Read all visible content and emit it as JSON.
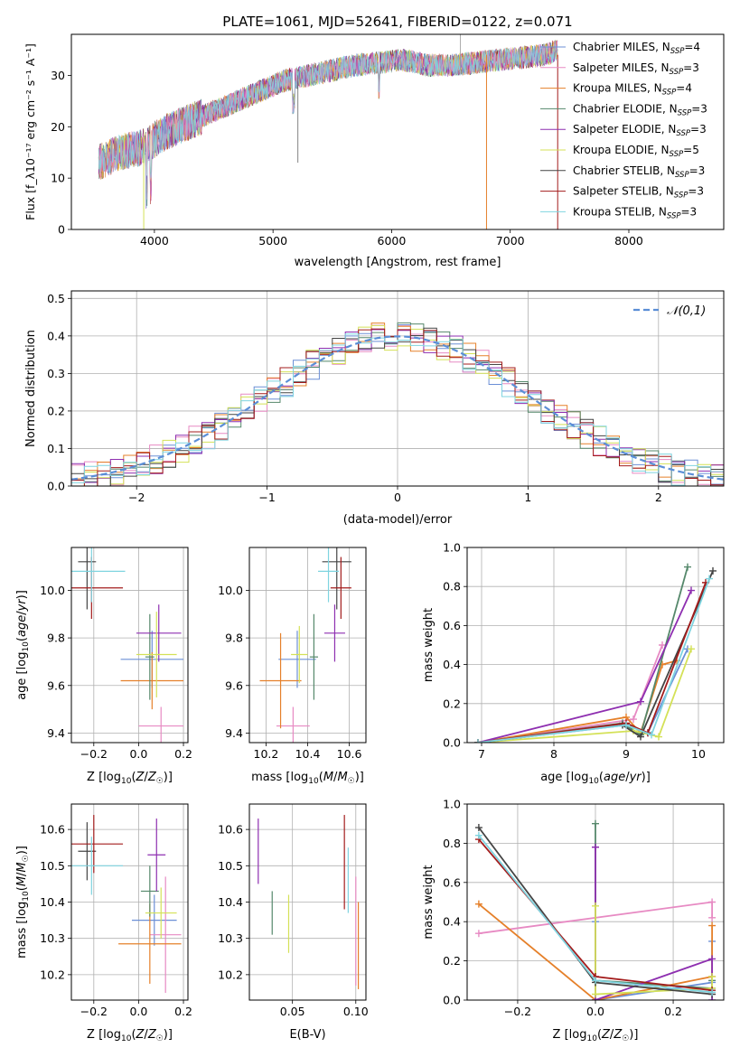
{
  "figure": {
    "title": "PLATE=1061, MJD=52641, FIBERID=0122, z=0.071"
  },
  "series_styles": [
    {
      "name": "Chabrier MILES",
      "nssp": "4",
      "color": "#6b8fd6"
    },
    {
      "name": "Salpeter MILES",
      "nssp": "3",
      "color": "#e78ac3"
    },
    {
      "name": "Kroupa MILES",
      "nssp": "4",
      "color": "#e5802a"
    },
    {
      "name": "Chabrier ELODIE",
      "nssp": "3",
      "color": "#55886b"
    },
    {
      "name": "Salpeter ELODIE",
      "nssp": "3",
      "color": "#8e2fb0"
    },
    {
      "name": "Kroupa ELODIE",
      "nssp": "5",
      "color": "#d4e157"
    },
    {
      "name": "Chabrier STELIB",
      "nssp": "3",
      "color": "#444444"
    },
    {
      "name": "Salpeter STELIB",
      "nssp": "3",
      "color": "#a31c1c"
    },
    {
      "name": "Kroupa STELIB",
      "nssp": "3",
      "color": "#7fd4e0"
    }
  ],
  "chart_data": [
    {
      "id": "spectrum",
      "type": "line",
      "xlabel": "wavelength [Angstrom, rest frame]",
      "ylabel": "Flux [f_λ10⁻¹⁷ erg cm⁻² s⁻¹ A⁻¹]",
      "xlim": [
        3300,
        8800
      ],
      "ylim": [
        0,
        38
      ],
      "xticks": [
        4000,
        5000,
        6000,
        7000,
        8000
      ],
      "yticks": [
        0,
        10,
        20,
        30
      ],
      "grid": false,
      "legend_position": "top-right",
      "legend": [
        {
          "name": "Chabrier MILES",
          "sub": "N",
          "subtext": "SSP",
          "value": "=4"
        },
        {
          "name": "Salpeter MILES",
          "sub": "N",
          "subtext": "SSP",
          "value": "=3"
        },
        {
          "name": "Kroupa MILES",
          "sub": "N",
          "subtext": "SSP",
          "value": "=4"
        },
        {
          "name": "Chabrier ELODIE",
          "sub": "N",
          "subtext": "SSP",
          "value": "=3"
        },
        {
          "name": "Salpeter ELODIE",
          "sub": "N",
          "subtext": "SSP",
          "value": "=3"
        },
        {
          "name": "Kroupa ELODIE",
          "sub": "N",
          "subtext": "SSP",
          "value": "=5"
        },
        {
          "name": "Chabrier STELIB",
          "sub": "N",
          "subtext": "SSP",
          "value": "=3"
        },
        {
          "name": "Salpeter STELIB",
          "sub": "N",
          "subtext": "SSP",
          "value": "=3"
        },
        {
          "name": "Kroupa STELIB",
          "sub": "N",
          "subtext": "SSP",
          "value": "=3"
        }
      ],
      "envelope": {
        "x": [
          3530,
          3700,
          3900,
          4100,
          4300,
          4500,
          4700,
          4900,
          5100,
          5300,
          5500,
          5700,
          5900,
          6100,
          6300,
          6500,
          6700,
          6900,
          7100,
          7300,
          7400
        ],
        "y": [
          13,
          15,
          16,
          19,
          21,
          23,
          25,
          27,
          29,
          30,
          31,
          32,
          32.5,
          33,
          32,
          32,
          32.5,
          33,
          33.5,
          34,
          35
        ]
      }
    },
    {
      "id": "residuals",
      "type": "line",
      "xlabel": "(data-model)/error",
      "ylabel": "Normed distribution",
      "xlim": [
        -2.5,
        2.5
      ],
      "ylim": [
        0,
        0.52
      ],
      "xticks": [
        -2,
        -1,
        0,
        1,
        2
      ],
      "yticks": [
        0.0,
        0.1,
        0.2,
        0.3,
        0.4,
        0.5
      ],
      "grid": true,
      "legend_position": "top-right",
      "reference_curve": {
        "label": "𝒩(0,1)",
        "color": "#5b8ed6",
        "style": "dashed"
      }
    },
    {
      "id": "age-vs-Z",
      "type": "scatter",
      "xlabel": "Z [log10(Z/Z☉)]",
      "ylabel": "age  [log10(age/yr)]",
      "xlim": [
        -0.3,
        0.22
      ],
      "ylim": [
        9.36,
        10.18
      ],
      "xticks": [
        -0.2,
        0.0,
        0.2
      ],
      "yticks": [
        9.4,
        9.6,
        9.8,
        10.0
      ],
      "grid": true,
      "points": [
        {
          "series": "Chabrier MILES",
          "x": 0.06,
          "y": 9.71,
          "xerr": 0.14,
          "yerr": 0.12
        },
        {
          "series": "Salpeter MILES",
          "x": 0.1,
          "y": 9.43,
          "xerr": 0.1,
          "yerr": 0.08
        },
        {
          "series": "Kroupa MILES",
          "x": 0.06,
          "y": 9.62,
          "xerr": 0.14,
          "yerr": 0.12
        },
        {
          "series": "Chabrier ELODIE",
          "x": 0.05,
          "y": 9.72,
          "xerr": 0.02,
          "yerr": 0.18
        },
        {
          "series": "Salpeter ELODIE",
          "x": 0.09,
          "y": 9.82,
          "xerr": 0.1,
          "yerr": 0.12
        },
        {
          "series": "Kroupa ELODIE",
          "x": 0.08,
          "y": 9.73,
          "xerr": 0.09,
          "yerr": 0.18
        },
        {
          "series": "Chabrier STELIB",
          "x": -0.23,
          "y": 10.12,
          "xerr": 0.04,
          "yerr": 0.2
        },
        {
          "series": "Salpeter STELIB",
          "x": -0.21,
          "y": 10.01,
          "xerr": 0.14,
          "yerr": 0.13
        },
        {
          "series": "Kroupa STELIB",
          "x": -0.21,
          "y": 10.08,
          "xerr": 0.15,
          "yerr": 0.13
        }
      ]
    },
    {
      "id": "age-vs-mass",
      "type": "scatter",
      "xlabel": "mass [log10(M/M☉)]",
      "ylabel": "",
      "xlim": [
        10.12,
        10.68
      ],
      "ylim": [
        9.36,
        10.18
      ],
      "xticks": [
        10.2,
        10.4,
        10.6
      ],
      "yticks": [
        9.4,
        9.6,
        9.8,
        10.0
      ],
      "grid": true,
      "points": [
        {
          "series": "Chabrier MILES",
          "x": 10.35,
          "y": 9.71,
          "xerr": 0.09,
          "yerr": 0.12
        },
        {
          "series": "Salpeter MILES",
          "x": 10.33,
          "y": 9.43,
          "xerr": 0.08,
          "yerr": 0.08
        },
        {
          "series": "Kroupa MILES",
          "x": 10.27,
          "y": 9.62,
          "xerr": 0.1,
          "yerr": 0.2
        },
        {
          "series": "Chabrier ELODIE",
          "x": 10.43,
          "y": 9.72,
          "xerr": 0.02,
          "yerr": 0.18
        },
        {
          "series": "Salpeter ELODIE",
          "x": 10.53,
          "y": 9.82,
          "xerr": 0.05,
          "yerr": 0.12
        },
        {
          "series": "Kroupa ELODIE",
          "x": 10.36,
          "y": 9.73,
          "xerr": 0.04,
          "yerr": 0.12
        },
        {
          "series": "Chabrier STELIB",
          "x": 10.54,
          "y": 10.12,
          "xerr": 0.07,
          "yerr": 0.2
        },
        {
          "series": "Salpeter STELIB",
          "x": 10.56,
          "y": 10.01,
          "xerr": 0.05,
          "yerr": 0.13
        },
        {
          "series": "Kroupa STELIB",
          "x": 10.5,
          "y": 10.08,
          "xerr": 0.05,
          "yerr": 0.13
        }
      ]
    },
    {
      "id": "weight-vs-age",
      "type": "line",
      "xlabel": "age  [log10(age/yr)]",
      "ylabel": "mass weight",
      "xlim": [
        6.8,
        10.35
      ],
      "ylim": [
        0,
        1.0
      ],
      "xticks": [
        7,
        8,
        9,
        10
      ],
      "yticks": [
        0.0,
        0.2,
        0.4,
        0.6,
        0.8,
        1.0
      ],
      "grid": true,
      "lines": [
        {
          "series": "Chabrier MILES",
          "x": [
            6.95,
            9.0,
            9.3,
            9.85
          ],
          "y": [
            0.0,
            0.09,
            0.05,
            0.48
          ]
        },
        {
          "series": "Salpeter MILES",
          "x": [
            6.95,
            9.1,
            9.5
          ],
          "y": [
            0.0,
            0.12,
            0.5
          ]
        },
        {
          "series": "Kroupa MILES",
          "x": [
            6.95,
            9.0,
            9.2,
            9.5,
            9.7
          ],
          "y": [
            0.0,
            0.13,
            0.05,
            0.4,
            0.42
          ]
        },
        {
          "series": "Chabrier ELODIE",
          "x": [
            6.95,
            8.95,
            9.2,
            9.85
          ],
          "y": [
            0.0,
            0.1,
            0.04,
            0.9
          ]
        },
        {
          "series": "Salpeter ELODIE",
          "x": [
            6.95,
            9.2,
            9.9
          ],
          "y": [
            0.0,
            0.21,
            0.78
          ]
        },
        {
          "series": "Kroupa ELODIE",
          "x": [
            6.95,
            9.1,
            9.45,
            9.9
          ],
          "y": [
            0.0,
            0.06,
            0.03,
            0.48
          ]
        },
        {
          "series": "Chabrier STELIB",
          "x": [
            6.95,
            8.95,
            9.2,
            10.2
          ],
          "y": [
            0.0,
            0.09,
            0.03,
            0.88
          ]
        },
        {
          "series": "Salpeter STELIB",
          "x": [
            6.95,
            9.0,
            9.3,
            10.1
          ],
          "y": [
            0.0,
            0.1,
            0.05,
            0.82
          ]
        },
        {
          "series": "Kroupa STELIB",
          "x": [
            6.95,
            9.0,
            9.35,
            10.15
          ],
          "y": [
            0.0,
            0.09,
            0.04,
            0.84
          ]
        }
      ]
    },
    {
      "id": "mass-vs-Z",
      "type": "scatter",
      "xlabel": "Z [log10(Z/Z☉)]",
      "ylabel": "mass [log10(M/M☉)]",
      "xlim": [
        -0.3,
        0.22
      ],
      "ylim": [
        10.13,
        10.67
      ],
      "xticks": [
        -0.2,
        0.0,
        0.2
      ],
      "yticks": [
        10.2,
        10.3,
        10.4,
        10.5,
        10.6
      ],
      "grid": true,
      "points": [
        {
          "series": "Chabrier MILES",
          "x": 0.07,
          "y": 10.35,
          "xerr": 0.1,
          "yerr": 0.07
        },
        {
          "series": "Salpeter MILES",
          "x": 0.12,
          "y": 10.31,
          "xerr": 0.07,
          "yerr": 0.16
        },
        {
          "series": "Kroupa MILES",
          "x": 0.05,
          "y": 10.285,
          "xerr": 0.14,
          "yerr": 0.11
        },
        {
          "series": "Chabrier ELODIE",
          "x": 0.05,
          "y": 10.43,
          "xerr": 0.04,
          "yerr": 0.07
        },
        {
          "series": "Salpeter ELODIE",
          "x": 0.08,
          "y": 10.53,
          "xerr": 0.04,
          "yerr": 0.1
        },
        {
          "series": "Kroupa ELODIE",
          "x": 0.1,
          "y": 10.37,
          "xerr": 0.07,
          "yerr": 0.07
        },
        {
          "series": "Chabrier STELIB",
          "x": -0.23,
          "y": 10.54,
          "xerr": 0.04,
          "yerr": 0.08
        },
        {
          "series": "Salpeter STELIB",
          "x": -0.2,
          "y": 10.56,
          "xerr": 0.13,
          "yerr": 0.08
        },
        {
          "series": "Kroupa STELIB",
          "x": -0.21,
          "y": 10.5,
          "xerr": 0.14,
          "yerr": 0.08
        }
      ]
    },
    {
      "id": "mass-vs-EBV",
      "type": "scatter",
      "xlabel": "E(B-V)",
      "ylabel": "",
      "xlim": [
        0.016,
        0.108
      ],
      "ylim": [
        10.13,
        10.67
      ],
      "xticks": [
        0.05,
        0.1
      ],
      "yticks": [
        10.2,
        10.3,
        10.4,
        10.5,
        10.6
      ],
      "grid": true,
      "points": [
        {
          "series": "Salpeter ELODIE",
          "x": 0.023,
          "y": 10.54,
          "xerr": 0,
          "yerr": 0.09
        },
        {
          "series": "Chabrier ELODIE",
          "x": 0.034,
          "y": 10.37,
          "xerr": 0,
          "yerr": 0.06
        },
        {
          "series": "Kroupa ELODIE",
          "x": 0.047,
          "y": 10.34,
          "xerr": 0,
          "yerr": 0.08
        },
        {
          "series": "Salpeter STELIB",
          "x": 0.091,
          "y": 10.51,
          "xerr": 0,
          "yerr": 0.13
        },
        {
          "series": "Kroupa STELIB",
          "x": 0.094,
          "y": 10.46,
          "xerr": 0,
          "yerr": 0.09
        },
        {
          "series": "Salpeter MILES",
          "x": 0.1,
          "y": 10.32,
          "xerr": 0,
          "yerr": 0.15
        },
        {
          "series": "Kroupa MILES",
          "x": 0.102,
          "y": 10.28,
          "xerr": 0,
          "yerr": 0.12
        }
      ]
    },
    {
      "id": "weight-vs-Z",
      "type": "line",
      "xlabel": "Z [log10(Z/Z☉)]",
      "ylabel": "mass weight",
      "xlim": [
        -0.33,
        0.33
      ],
      "ylim": [
        0,
        1.0
      ],
      "xticks": [
        -0.2,
        0.0,
        0.2
      ],
      "yticks": [
        0.0,
        0.2,
        0.4,
        0.6,
        0.8,
        1.0
      ],
      "grid": true,
      "lines": [
        {
          "series": "Chabrier MILES",
          "x": [
            0.0,
            0.0,
            0.3,
            0.3
          ],
          "y": [
            0.4,
            0.0,
            0.09,
            0.3
          ]
        },
        {
          "series": "Salpeter MILES",
          "x": [
            -0.3,
            0.3,
            0.3
          ],
          "y": [
            0.34,
            0.5,
            0.42
          ]
        },
        {
          "series": "Kroupa MILES",
          "x": [
            -0.3,
            0.0,
            0.3,
            0.3
          ],
          "y": [
            0.49,
            0.0,
            0.12,
            0.38
          ]
        },
        {
          "series": "Chabrier ELODIE",
          "x": [
            0.0,
            0.0,
            0.3,
            0.3
          ],
          "y": [
            0.9,
            0.1,
            0.06,
            0.1
          ]
        },
        {
          "series": "Salpeter ELODIE",
          "x": [
            0.0,
            0.0,
            0.3,
            0.3
          ],
          "y": [
            0.78,
            0.0,
            0.21,
            0.0
          ]
        },
        {
          "series": "Kroupa ELODIE",
          "x": [
            0.0,
            0.0,
            0.3,
            0.3
          ],
          "y": [
            0.48,
            0.03,
            0.06,
            0.12
          ]
        },
        {
          "series": "Chabrier STELIB",
          "x": [
            -0.3,
            0.0,
            0.3
          ],
          "y": [
            0.88,
            0.09,
            0.03
          ]
        },
        {
          "series": "Salpeter STELIB",
          "x": [
            -0.3,
            0.0,
            0.3
          ],
          "y": [
            0.82,
            0.12,
            0.05
          ]
        },
        {
          "series": "Kroupa STELIB",
          "x": [
            -0.3,
            0.0,
            0.3
          ],
          "y": [
            0.84,
            0.1,
            0.04
          ]
        }
      ]
    }
  ]
}
